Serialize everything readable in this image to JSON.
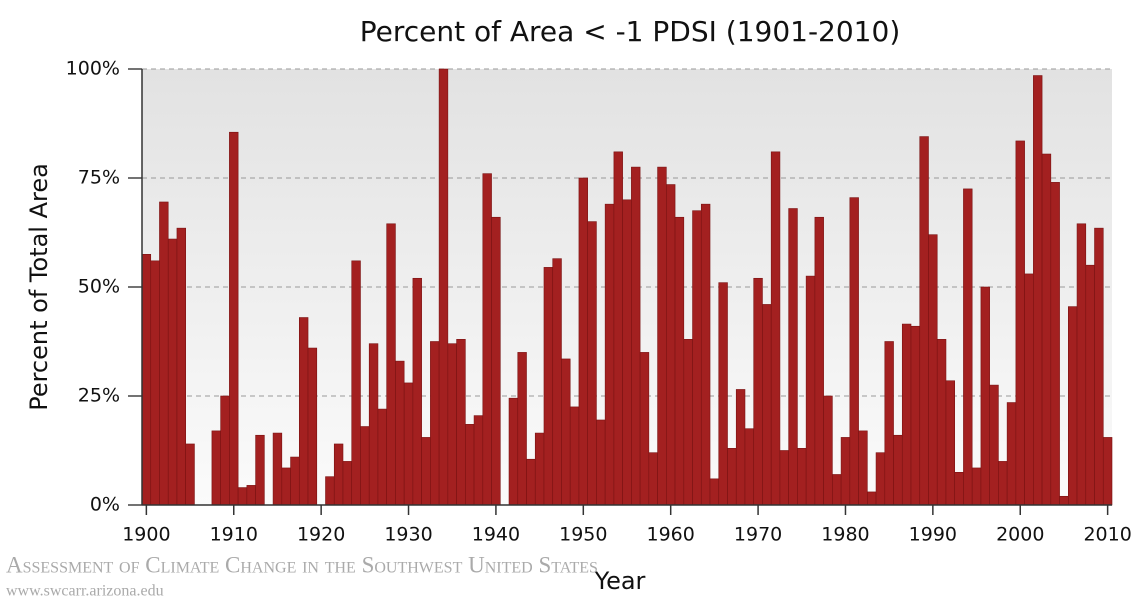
{
  "chart_data": {
    "type": "bar",
    "title": "Percent of Area < -1 PDSI (1901-2010)",
    "x_label": "Year",
    "y_label": "Percent of Total Area",
    "footer": [
      "Assessment of Climate Change in the Southwest United States",
      "www.swcarr.arizona.edu"
    ],
    "color": "#a32020",
    "grid": true,
    "x": [
      1900,
      1901,
      1902,
      1903,
      1904,
      1905,
      1906,
      1907,
      1908,
      1909,
      1910,
      1911,
      1912,
      1913,
      1914,
      1915,
      1916,
      1917,
      1918,
      1919,
      1920,
      1921,
      1922,
      1923,
      1924,
      1925,
      1926,
      1927,
      1928,
      1929,
      1930,
      1931,
      1932,
      1933,
      1934,
      1935,
      1936,
      1937,
      1938,
      1939,
      1940,
      1941,
      1942,
      1943,
      1944,
      1945,
      1946,
      1947,
      1948,
      1949,
      1950,
      1951,
      1952,
      1953,
      1954,
      1955,
      1956,
      1957,
      1958,
      1959,
      1960,
      1961,
      1962,
      1963,
      1964,
      1965,
      1966,
      1967,
      1968,
      1969,
      1970,
      1971,
      1972,
      1973,
      1974,
      1975,
      1976,
      1977,
      1978,
      1979,
      1980,
      1981,
      1982,
      1983,
      1984,
      1985,
      1986,
      1987,
      1988,
      1989,
      1990,
      1991,
      1992,
      1993,
      1994,
      1995,
      1996,
      1997,
      1998,
      1999,
      2000,
      2001,
      2002,
      2003,
      2004,
      2005,
      2006,
      2007,
      2008,
      2009,
      2010
    ],
    "values": [
      57.5,
      56,
      69.5,
      61,
      63.5,
      14,
      0,
      0,
      17,
      25,
      85.5,
      4,
      4.5,
      16,
      0,
      16.5,
      8.5,
      11,
      43,
      36,
      0,
      6.5,
      14,
      10,
      56,
      18,
      37,
      22,
      64.5,
      33,
      28,
      52,
      15.5,
      37.5,
      100,
      37,
      38,
      18.5,
      20.5,
      76,
      66,
      0,
      24.5,
      35,
      10.5,
      16.5,
      54.5,
      56.5,
      33.5,
      22.5,
      75,
      65,
      19.5,
      69,
      81,
      70,
      77.5,
      35,
      12,
      77.5,
      73.5,
      66,
      38,
      67.5,
      69,
      6,
      51,
      13,
      26.5,
      17.5,
      52,
      46,
      81,
      12.5,
      68,
      13,
      52.5,
      66,
      25,
      7,
      15.5,
      70.5,
      17,
      3,
      12,
      37.5,
      16,
      41.5,
      41,
      84.5,
      62,
      38,
      28.5,
      7.5,
      72.5,
      8.5,
      50,
      27.5,
      10,
      23.5,
      83.5,
      53,
      98.5,
      80.5,
      74,
      2,
      45.5,
      64.5,
      55,
      63.5,
      15.5
    ],
    "xlim": [
      1899.5,
      2010.5
    ],
    "xticks": [
      1900,
      1910,
      1920,
      1930,
      1940,
      1950,
      1960,
      1970,
      1980,
      1990,
      2000,
      2010
    ],
    "ylim": [
      0,
      100
    ],
    "yticks": [
      {
        "value": 0,
        "label": "0%"
      },
      {
        "value": 25,
        "label": "25%"
      },
      {
        "value": 50,
        "label": "50%"
      },
      {
        "value": 75,
        "label": "75%"
      },
      {
        "value": 100,
        "label": "100%"
      }
    ]
  }
}
